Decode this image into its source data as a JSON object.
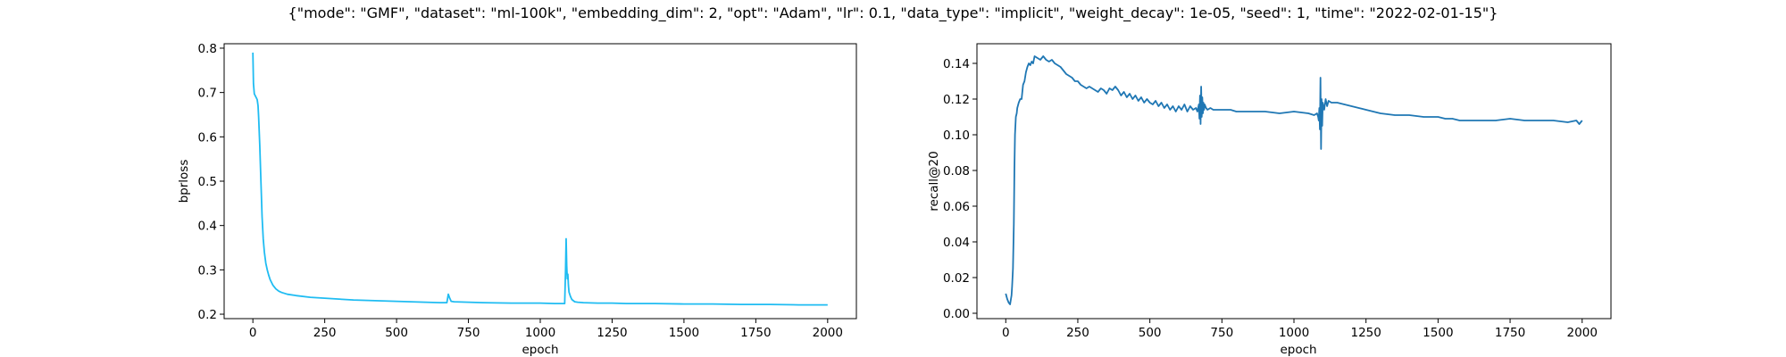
{
  "figure": {
    "suptitle": "{\"mode\": \"GMF\", \"dataset\": \"ml-100k\", \"embedding_dim\": 2, \"opt\": \"Adam\", \"lr\": 0.1, \"data_type\": \"implicit\", \"weight_decay\": 1e-05, \"seed\": 1, \"time\": \"2022-02-01-15\"}"
  },
  "chart_data": [
    {
      "type": "line",
      "title": "",
      "xlabel": "epoch",
      "ylabel": "bprloss",
      "xlim": [
        -100,
        2100
      ],
      "ylim": [
        0.19,
        0.81
      ],
      "xticks": [
        0,
        250,
        500,
        750,
        1000,
        1250,
        1500,
        1750,
        2000
      ],
      "xtick_labels": [
        "0",
        "250",
        "500",
        "750",
        "1000",
        "1250",
        "1500",
        "1750",
        "2000"
      ],
      "yticks": [
        0.2,
        0.3,
        0.4,
        0.5,
        0.6,
        0.7,
        0.8
      ],
      "ytick_labels": [
        "0.2",
        "0.3",
        "0.4",
        "0.5",
        "0.6",
        "0.7",
        "0.8"
      ],
      "grid": false,
      "color": "#1fbcf2",
      "series": [
        {
          "x": [
            0,
            2,
            5,
            8,
            12,
            15,
            18,
            20,
            24,
            28,
            32,
            36,
            40,
            45,
            50,
            55,
            60,
            70,
            80,
            90,
            100,
            120,
            150,
            200,
            250,
            300,
            350,
            400,
            450,
            500,
            550,
            600,
            650,
            675,
            680,
            685,
            690,
            700,
            750,
            800,
            900,
            1000,
            1050,
            1085,
            1088,
            1090,
            1092,
            1094,
            1096,
            1098,
            1100,
            1105,
            1110,
            1120,
            1130,
            1150,
            1200,
            1250,
            1300,
            1400,
            1500,
            1600,
            1700,
            1800,
            1900,
            2000
          ],
          "y": [
            0.79,
            0.72,
            0.697,
            0.693,
            0.688,
            0.684,
            0.67,
            0.645,
            0.58,
            0.5,
            0.42,
            0.37,
            0.34,
            0.315,
            0.3,
            0.288,
            0.278,
            0.265,
            0.257,
            0.252,
            0.249,
            0.245,
            0.242,
            0.238,
            0.236,
            0.234,
            0.232,
            0.231,
            0.23,
            0.229,
            0.228,
            0.227,
            0.226,
            0.226,
            0.245,
            0.236,
            0.229,
            0.228,
            0.227,
            0.226,
            0.225,
            0.225,
            0.224,
            0.224,
            0.3,
            0.37,
            0.31,
            0.28,
            0.29,
            0.265,
            0.25,
            0.24,
            0.233,
            0.228,
            0.227,
            0.226,
            0.225,
            0.225,
            0.224,
            0.224,
            0.223,
            0.223,
            0.222,
            0.222,
            0.221,
            0.221
          ]
        }
      ]
    },
    {
      "type": "line",
      "title": "",
      "xlabel": "epoch",
      "ylabel": "recall@20",
      "xlim": [
        -100,
        2100
      ],
      "ylim": [
        -0.003,
        0.151
      ],
      "xticks": [
        0,
        250,
        500,
        750,
        1000,
        1250,
        1500,
        1750,
        2000
      ],
      "xtick_labels": [
        "0",
        "250",
        "500",
        "750",
        "1000",
        "1250",
        "1500",
        "1750",
        "2000"
      ],
      "yticks": [
        0.0,
        0.02,
        0.04,
        0.06,
        0.08,
        0.1,
        0.12,
        0.14
      ],
      "ytick_labels": [
        "0.00",
        "0.02",
        "0.04",
        "0.06",
        "0.08",
        "0.10",
        "0.12",
        "0.14"
      ],
      "grid": false,
      "color": "#1f77b4",
      "series": [
        {
          "x": [
            0,
            5,
            10,
            15,
            18,
            20,
            22,
            25,
            28,
            30,
            32,
            35,
            38,
            40,
            45,
            50,
            55,
            60,
            65,
            70,
            75,
            80,
            85,
            90,
            95,
            100,
            110,
            120,
            130,
            140,
            150,
            160,
            170,
            180,
            190,
            200,
            210,
            220,
            230,
            240,
            250,
            260,
            270,
            280,
            290,
            300,
            310,
            320,
            330,
            340,
            350,
            360,
            370,
            380,
            390,
            400,
            410,
            420,
            430,
            440,
            450,
            460,
            470,
            480,
            490,
            500,
            510,
            520,
            530,
            540,
            550,
            560,
            570,
            580,
            590,
            600,
            610,
            620,
            630,
            640,
            650,
            660,
            665,
            670,
            672,
            674,
            676,
            678,
            680,
            682,
            684,
            686,
            688,
            690,
            695,
            700,
            710,
            720,
            740,
            760,
            780,
            800,
            850,
            900,
            950,
            1000,
            1050,
            1070,
            1080,
            1084,
            1086,
            1088,
            1090,
            1092,
            1094,
            1096,
            1098,
            1100,
            1105,
            1110,
            1115,
            1120,
            1130,
            1150,
            1175,
            1200,
            1225,
            1250,
            1275,
            1300,
            1350,
            1400,
            1450,
            1500,
            1525,
            1550,
            1575,
            1600,
            1650,
            1700,
            1750,
            1800,
            1850,
            1900,
            1950,
            1980,
            1990,
            2000
          ],
          "y": [
            0.011,
            0.008,
            0.006,
            0.005,
            0.008,
            0.01,
            0.015,
            0.025,
            0.05,
            0.08,
            0.1,
            0.11,
            0.112,
            0.115,
            0.118,
            0.12,
            0.12,
            0.128,
            0.13,
            0.135,
            0.138,
            0.14,
            0.139,
            0.141,
            0.14,
            0.144,
            0.143,
            0.142,
            0.144,
            0.142,
            0.141,
            0.142,
            0.14,
            0.139,
            0.138,
            0.136,
            0.134,
            0.133,
            0.132,
            0.13,
            0.13,
            0.128,
            0.127,
            0.126,
            0.127,
            0.126,
            0.125,
            0.124,
            0.126,
            0.125,
            0.123,
            0.126,
            0.125,
            0.127,
            0.125,
            0.122,
            0.124,
            0.121,
            0.123,
            0.12,
            0.122,
            0.119,
            0.121,
            0.118,
            0.12,
            0.118,
            0.117,
            0.119,
            0.116,
            0.118,
            0.115,
            0.117,
            0.114,
            0.116,
            0.113,
            0.116,
            0.114,
            0.117,
            0.113,
            0.116,
            0.114,
            0.115,
            0.113,
            0.117,
            0.109,
            0.122,
            0.106,
            0.127,
            0.11,
            0.121,
            0.112,
            0.118,
            0.114,
            0.117,
            0.115,
            0.114,
            0.115,
            0.114,
            0.114,
            0.114,
            0.114,
            0.113,
            0.113,
            0.113,
            0.112,
            0.113,
            0.112,
            0.111,
            0.112,
            0.11,
            0.108,
            0.115,
            0.103,
            0.132,
            0.092,
            0.12,
            0.105,
            0.118,
            0.114,
            0.12,
            0.116,
            0.119,
            0.118,
            0.118,
            0.117,
            0.116,
            0.115,
            0.114,
            0.113,
            0.112,
            0.111,
            0.111,
            0.11,
            0.11,
            0.109,
            0.109,
            0.108,
            0.108,
            0.108,
            0.108,
            0.109,
            0.108,
            0.108,
            0.108,
            0.107,
            0.108,
            0.106,
            0.108
          ]
        }
      ]
    }
  ]
}
